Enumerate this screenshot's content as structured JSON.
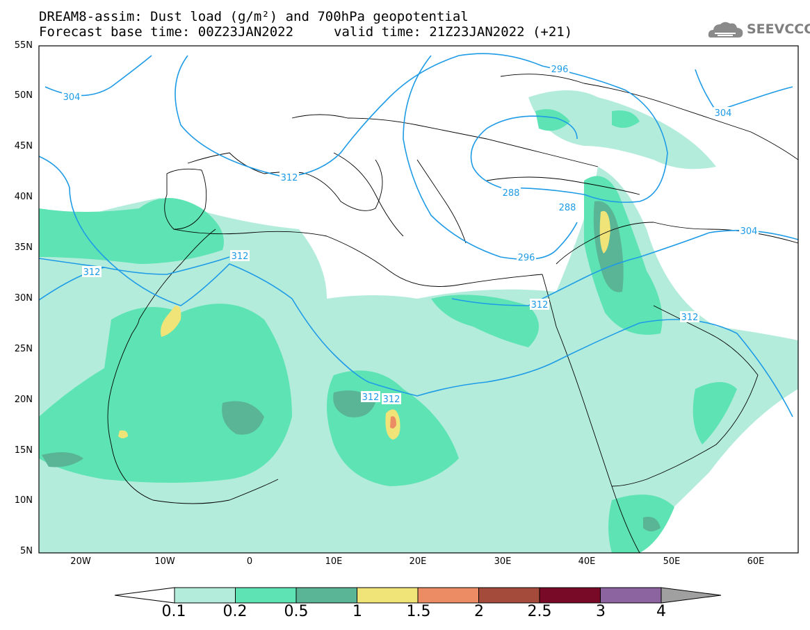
{
  "header": {
    "title_line1": "DREAM8-assim: Dust load (g/m²) and 700hPa geopotential",
    "title_line2": "Forecast base time: 00Z23JAN2022",
    "valid_time": "valid time: 21Z23JAN2022 (+21)",
    "logo_text": "SEEVCCC"
  },
  "axes": {
    "lat_ticks": [
      "55N",
      "50N",
      "45N",
      "40N",
      "35N",
      "30N",
      "25N",
      "20N",
      "15N",
      "10N",
      "5N"
    ],
    "lon_ticks": [
      "20W",
      "10W",
      "0",
      "10E",
      "20E",
      "30E",
      "40E",
      "50E",
      "60E"
    ]
  },
  "contour_labels": [
    "304",
    "296",
    "312",
    "288",
    "288",
    "304",
    "312",
    "296",
    "304",
    "312",
    "312",
    "312",
    "312",
    "312"
  ],
  "colorbar": {
    "labels": [
      "0.1",
      "0.2",
      "0.5",
      "1",
      "1.5",
      "2",
      "2.5",
      "3",
      "4"
    ],
    "colors": [
      "#ffffff",
      "#b4ecdc",
      "#5ee4b4",
      "#5ab496",
      "#f0e478",
      "#eb8c64",
      "#a54b3c",
      "#780a28",
      "#8c64a0",
      "#a0a0a0"
    ]
  },
  "map_colors": {
    "geopotential_contour": "#1e9be6",
    "coastline": "#000000"
  }
}
